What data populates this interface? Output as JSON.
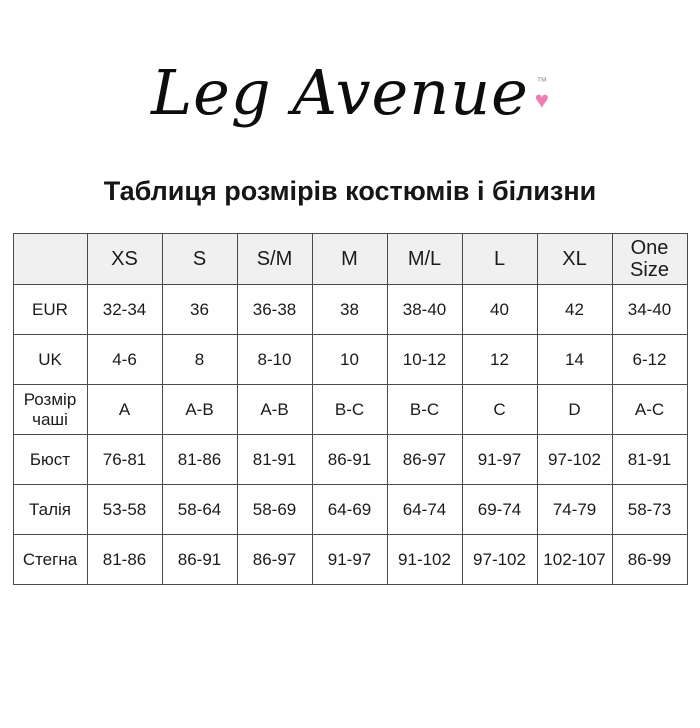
{
  "logo": {
    "text": "Leg Avenue",
    "trademark": "™",
    "heart": "♥",
    "heart_color": "#ee7db4"
  },
  "title": "Таблиця розмірів костюмів і білизни",
  "table": {
    "columns": [
      "",
      "XS",
      "S",
      "S/M",
      "M",
      "M/L",
      "L",
      "XL",
      "One Size"
    ],
    "rows": [
      {
        "label": "EUR",
        "values": [
          "32-34",
          "36",
          "36-38",
          "38",
          "38-40",
          "40",
          "42",
          "34-40"
        ]
      },
      {
        "label": "UK",
        "values": [
          "4-6",
          "8",
          "8-10",
          "10",
          "10-12",
          "12",
          "14",
          "6-12"
        ]
      },
      {
        "label": "Розмір чаші",
        "values": [
          "A",
          "A-B",
          "A-B",
          "B-C",
          "B-C",
          "C",
          "D",
          "A-C"
        ]
      },
      {
        "label": "Бюст",
        "values": [
          "76-81",
          "81-86",
          "81-91",
          "86-91",
          "86-97",
          "91-97",
          "97-102",
          "81-91"
        ]
      },
      {
        "label": "Талія",
        "values": [
          "53-58",
          "58-64",
          "58-69",
          "64-69",
          "64-74",
          "69-74",
          "74-79",
          "58-73"
        ]
      },
      {
        "label": "Стегна",
        "values": [
          "81-86",
          "86-91",
          "86-97",
          "91-97",
          "91-102",
          "97-102",
          "102-107",
          "86-99"
        ]
      }
    ]
  },
  "colors": {
    "border": "#4a4a4a",
    "header_bg": "#f0f0f0",
    "text": "#1b1b1b"
  }
}
